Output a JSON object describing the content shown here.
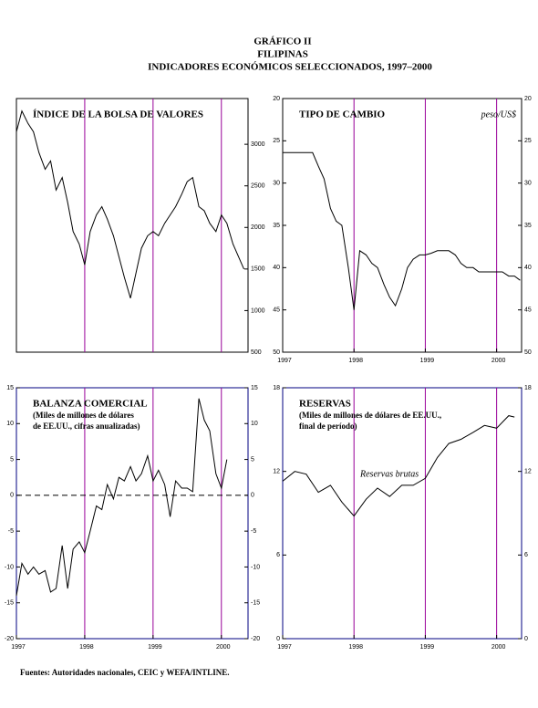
{
  "title": [
    "GRÁFICO II",
    "FILIPINAS",
    "INDICADORES ECONÓMICOS SELECCIONADOS, 1997–2000"
  ],
  "source": "Fuentes: Autoridades nacionales, CEIC y WEFA/INTLINE.",
  "chart_data": [
    {
      "type": "line",
      "title": "ÍNDICE DE LA BOLSA DE VALORES",
      "color": "#000000",
      "x": [
        1997.0,
        1997.08,
        1997.17,
        1997.25,
        1997.33,
        1997.42,
        1997.5,
        1997.58,
        1997.67,
        1997.75,
        1997.83,
        1997.92,
        1998.0,
        1998.08,
        1998.17,
        1998.25,
        1998.33,
        1998.42,
        1998.5,
        1998.58,
        1998.67,
        1998.75,
        1998.83,
        1998.92,
        1999.0,
        1999.08,
        1999.17,
        1999.25,
        1999.33,
        1999.42,
        1999.5,
        1999.58,
        1999.67,
        1999.75,
        1999.83,
        1999.92,
        2000.0,
        2000.08,
        2000.17,
        2000.25,
        2000.33
      ],
      "values": [
        3150,
        3400,
        3250,
        3150,
        2900,
        2700,
        2800,
        2450,
        2600,
        2300,
        1950,
        1800,
        1550,
        1950,
        2150,
        2250,
        2100,
        1900,
        1650,
        1400,
        1150,
        1450,
        1750,
        1900,
        1950,
        1900,
        2050,
        2150,
        2250,
        2400,
        2550,
        2600,
        2250,
        2200,
        2050,
        1950,
        2150,
        2050,
        1800,
        1650,
        1500
      ],
      "xlim": [
        1997,
        2000.39
      ],
      "ylim": [
        500,
        3550
      ],
      "yticks": [
        500,
        1000,
        1500,
        2000,
        2500,
        3000
      ],
      "ytick_sides": [
        "right"
      ],
      "vlines": [
        1998,
        1999,
        2000
      ],
      "vline_color": "#990099"
    },
    {
      "type": "line",
      "title": "TIPO DE CAMBIO",
      "unit": "peso/US$",
      "color": "#000000",
      "x": [
        1997.0,
        1997.08,
        1997.17,
        1997.25,
        1997.33,
        1997.42,
        1997.5,
        1997.58,
        1997.67,
        1997.75,
        1997.83,
        1997.92,
        1998.0,
        1998.08,
        1998.17,
        1998.25,
        1998.33,
        1998.42,
        1998.5,
        1998.58,
        1998.67,
        1998.75,
        1998.83,
        1998.92,
        1999.0,
        1999.08,
        1999.17,
        1999.25,
        1999.33,
        1999.42,
        1999.5,
        1999.58,
        1999.67,
        1999.75,
        1999.83,
        1999.92,
        2000.0,
        2000.08,
        2000.17,
        2000.25,
        2000.33
      ],
      "values": [
        26.4,
        26.4,
        26.4,
        26.4,
        26.4,
        26.4,
        28,
        29.5,
        33,
        34.5,
        35,
        40,
        45,
        38,
        38.5,
        39.5,
        40,
        42,
        43.5,
        44.5,
        42.5,
        40,
        39,
        38.5,
        38.5,
        38.3,
        38,
        38,
        38,
        38.5,
        39.5,
        40,
        40,
        40.5,
        40.5,
        40.5,
        40.5,
        40.5,
        41,
        41,
        41.5
      ],
      "xlim": [
        1997,
        2000.35
      ],
      "ylim": [
        20,
        50
      ],
      "y_inverted": true,
      "yticks": [
        20,
        25,
        30,
        35,
        40,
        45,
        50
      ],
      "ytick_sides": [
        "left",
        "right"
      ],
      "xticks": [
        1997,
        1998,
        1999,
        2000
      ],
      "vlines": [
        1998,
        1999,
        2000
      ],
      "vline_color": "#990099"
    },
    {
      "type": "line",
      "title": "BALANZA COMERCIAL",
      "subtitle": [
        "(Miles de millones de dólares",
        "de EE.UU., cifras anualizadas)"
      ],
      "color": "#000000",
      "x": [
        1997.0,
        1997.08,
        1997.17,
        1997.25,
        1997.33,
        1997.42,
        1997.5,
        1997.58,
        1997.67,
        1997.75,
        1997.83,
        1997.92,
        1998.0,
        1998.08,
        1998.17,
        1998.25,
        1998.33,
        1998.42,
        1998.5,
        1998.58,
        1998.67,
        1998.75,
        1998.83,
        1998.92,
        1999.0,
        1999.08,
        1999.17,
        1999.25,
        1999.33,
        1999.42,
        1999.5,
        1999.58,
        1999.67,
        1999.75,
        1999.83,
        1999.92,
        2000.0,
        2000.08
      ],
      "values": [
        -14,
        -9.5,
        -11,
        -10,
        -11,
        -10.5,
        -13.5,
        -13,
        -7,
        -13,
        -7.5,
        -6.5,
        -8,
        -5,
        -1.5,
        -2,
        1.5,
        -0.5,
        2.5,
        2,
        4,
        2,
        3,
        5.5,
        2,
        3.5,
        1.5,
        -3,
        2,
        1,
        1,
        0.5,
        13.5,
        10.5,
        9,
        3,
        1,
        5
      ],
      "xlim": [
        1997,
        2000.39
      ],
      "ylim": [
        -20,
        15
      ],
      "yticks": [
        -20,
        -15,
        -10,
        -5,
        0,
        5,
        10,
        15
      ],
      "ytick_sides": [
        "left",
        "right"
      ],
      "xticks": [
        1997,
        1998,
        1999,
        2000
      ],
      "zero_line": true,
      "vlines": [
        1998,
        1999,
        2000
      ],
      "vline_color": "#990099"
    },
    {
      "type": "line",
      "title": "RESERVAS",
      "subtitle": [
        "(Miles de millones de dólares de EE.UU.,",
        "final de período)"
      ],
      "annotation": "Reservas brutas",
      "color": "#000000",
      "x": [
        1997.0,
        1997.17,
        1997.33,
        1997.5,
        1997.67,
        1997.83,
        1998.0,
        1998.17,
        1998.33,
        1998.5,
        1998.67,
        1998.83,
        1999.0,
        1999.17,
        1999.33,
        1999.5,
        1999.67,
        1999.83,
        2000.0,
        2000.17,
        2000.25
      ],
      "values": [
        11.3,
        12,
        11.8,
        10.5,
        11,
        9.8,
        8.8,
        10,
        10.8,
        10.2,
        11,
        11,
        11.5,
        13,
        14,
        14.3,
        14.8,
        15.3,
        15.1,
        16,
        15.9
      ],
      "xlim": [
        1997,
        2000.35
      ],
      "ylim": [
        0,
        18
      ],
      "yticks": [
        0,
        6,
        12,
        18
      ],
      "ytick_sides": [
        "left",
        "right"
      ],
      "xticks": [
        1997,
        1998,
        1999,
        2000
      ],
      "vlines": [
        1998,
        1999,
        2000
      ],
      "vline_color": "#990099"
    }
  ]
}
